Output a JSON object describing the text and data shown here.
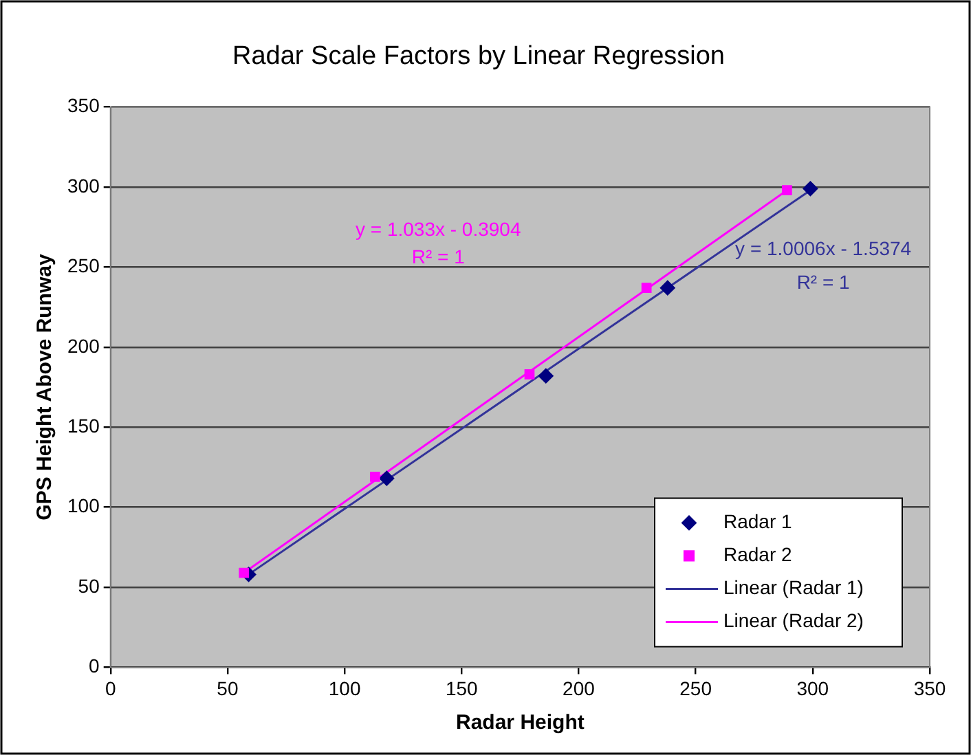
{
  "chart_data": {
    "type": "scatter",
    "title": "Radar Scale Factors by Linear Regression",
    "xlabel": "Radar Height",
    "ylabel": "GPS Height Above Runway",
    "xlim": [
      0,
      350
    ],
    "xticks": [
      0,
      50,
      100,
      150,
      200,
      250,
      300,
      350
    ],
    "ylim": [
      0,
      350
    ],
    "yticks": [
      0,
      50,
      100,
      150,
      200,
      250,
      300,
      350
    ],
    "grid": "y",
    "legend": "bottom right",
    "series": [
      {
        "name": "Radar 1",
        "type": "scatter",
        "marker": "diamond",
        "color": "#000080",
        "x": [
          59,
          118,
          186,
          238,
          299
        ],
        "values": [
          58,
          118,
          182,
          237,
          299
        ]
      },
      {
        "name": "Radar 2",
        "type": "scatter",
        "marker": "square",
        "color": "#ff00ff",
        "x": [
          57,
          113,
          179,
          229,
          289
        ],
        "values": [
          59,
          119,
          183,
          237,
          298
        ]
      },
      {
        "name": "Linear (Radar 1)",
        "type": "line",
        "marker": "none",
        "color": "#333399",
        "x": [
          59,
          299
        ],
        "values": [
          58,
          298
        ]
      },
      {
        "name": "Linear (Radar 2)",
        "type": "line",
        "marker": "none",
        "color": "#ff00ff",
        "x": [
          57,
          289
        ],
        "values": [
          59,
          298
        ]
      }
    ],
    "annotations": [
      "y = 1.033x - 0.3904",
      "R² = 1",
      "y = 1.0006x - 1.5374",
      "R² = 1"
    ]
  }
}
